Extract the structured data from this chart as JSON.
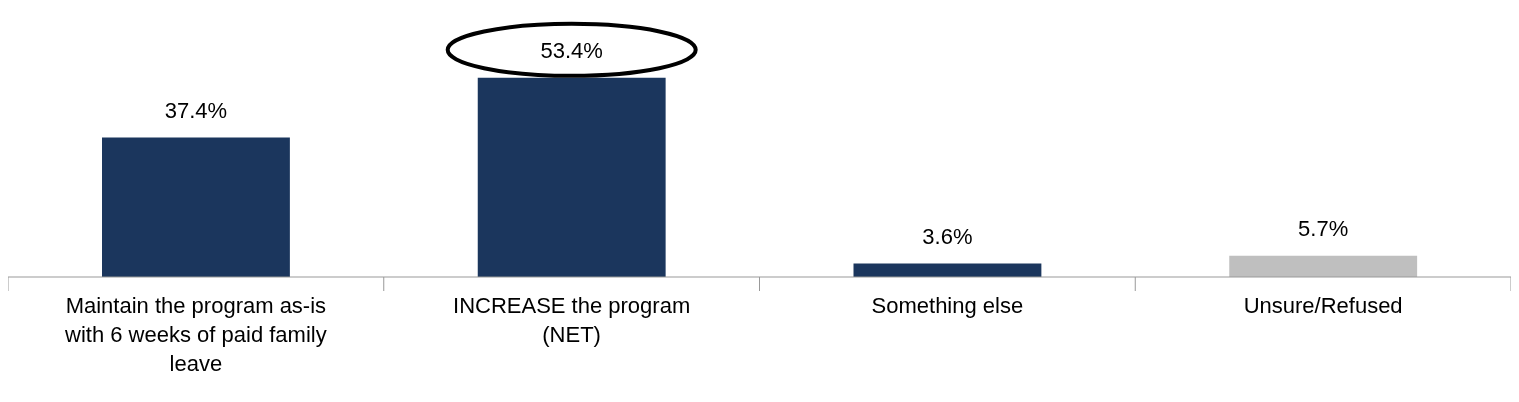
{
  "chart_data": {
    "type": "bar",
    "categories": [
      "Maintain the program as-is with 6 weeks of paid family leave",
      "INCREASE the program (NET)",
      "Something else",
      "Unsure/Refused"
    ],
    "values": [
      37.4,
      53.4,
      3.6,
      5.7
    ],
    "colors": [
      "#1b365d",
      "#1b365d",
      "#1b365d",
      "#bfbfbf"
    ],
    "value_labels": [
      "37.4%",
      "53.4%",
      "3.6%",
      "5.7%"
    ]
  }
}
